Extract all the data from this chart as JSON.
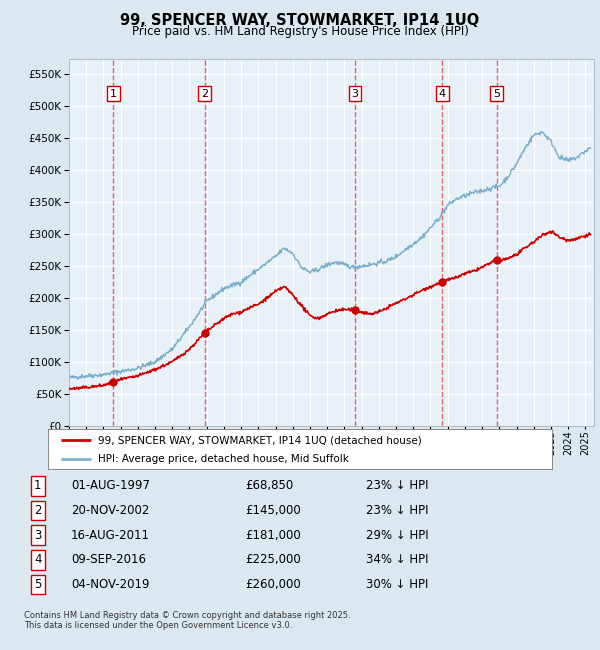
{
  "title": "99, SPENCER WAY, STOWMARKET, IP14 1UQ",
  "subtitle": "Price paid vs. HM Land Registry's House Price Index (HPI)",
  "ylim": [
    0,
    575000
  ],
  "yticks": [
    0,
    50000,
    100000,
    150000,
    200000,
    250000,
    300000,
    350000,
    400000,
    450000,
    500000,
    550000
  ],
  "xlim_start": 1995.0,
  "xlim_end": 2025.5,
  "bg_color": "#dce8f0",
  "plot_bg_color": "#e8f0f8",
  "grid_color": "#ffffff",
  "purchases": [
    {
      "num": 1,
      "date": "01-AUG-1997",
      "year": 1997.58,
      "price": 68850,
      "pct": "23%",
      "dir": "↓"
    },
    {
      "num": 2,
      "date": "20-NOV-2002",
      "year": 2002.88,
      "price": 145000,
      "pct": "23%",
      "dir": "↓"
    },
    {
      "num": 3,
      "date": "16-AUG-2011",
      "year": 2011.62,
      "price": 181000,
      "pct": "29%",
      "dir": "↓"
    },
    {
      "num": 4,
      "date": "09-SEP-2016",
      "year": 2016.69,
      "price": 225000,
      "pct": "34%",
      "dir": "↓"
    },
    {
      "num": 5,
      "date": "04-NOV-2019",
      "year": 2019.84,
      "price": 260000,
      "pct": "30%",
      "dir": "↓"
    }
  ],
  "legend_label_red": "99, SPENCER WAY, STOWMARKET, IP14 1UQ (detached house)",
  "legend_label_blue": "HPI: Average price, detached house, Mid Suffolk",
  "footer": "Contains HM Land Registry data © Crown copyright and database right 2025.\nThis data is licensed under the Open Government Licence v3.0.",
  "red_color": "#cc0000",
  "blue_color": "#7aafcc",
  "dashed_color": "#dd4444",
  "hpi_keypoints": [
    [
      1995.0,
      75000
    ],
    [
      1996.0,
      78000
    ],
    [
      1997.0,
      80000
    ],
    [
      1998.0,
      85000
    ],
    [
      1999.0,
      90000
    ],
    [
      2000.0,
      100000
    ],
    [
      2001.0,
      120000
    ],
    [
      2002.0,
      155000
    ],
    [
      2003.0,
      195000
    ],
    [
      2004.0,
      215000
    ],
    [
      2005.0,
      225000
    ],
    [
      2006.0,
      245000
    ],
    [
      2007.0,
      265000
    ],
    [
      2007.5,
      278000
    ],
    [
      2008.0,
      270000
    ],
    [
      2008.5,
      248000
    ],
    [
      2009.0,
      240000
    ],
    [
      2009.5,
      245000
    ],
    [
      2010.0,
      252000
    ],
    [
      2010.5,
      256000
    ],
    [
      2011.0,
      252000
    ],
    [
      2011.5,
      248000
    ],
    [
      2012.0,
      250000
    ],
    [
      2012.5,
      252000
    ],
    [
      2013.0,
      255000
    ],
    [
      2013.5,
      258000
    ],
    [
      2014.0,
      265000
    ],
    [
      2014.5,
      275000
    ],
    [
      2015.0,
      285000
    ],
    [
      2015.5,
      295000
    ],
    [
      2016.0,
      310000
    ],
    [
      2016.5,
      325000
    ],
    [
      2017.0,
      345000
    ],
    [
      2017.5,
      355000
    ],
    [
      2018.0,
      360000
    ],
    [
      2018.5,
      365000
    ],
    [
      2019.0,
      368000
    ],
    [
      2019.5,
      372000
    ],
    [
      2020.0,
      375000
    ],
    [
      2020.5,
      390000
    ],
    [
      2021.0,
      410000
    ],
    [
      2021.5,
      435000
    ],
    [
      2022.0,
      455000
    ],
    [
      2022.5,
      460000
    ],
    [
      2023.0,
      445000
    ],
    [
      2023.5,
      420000
    ],
    [
      2024.0,
      415000
    ],
    [
      2024.5,
      420000
    ],
    [
      2025.0,
      430000
    ],
    [
      2025.3,
      435000
    ]
  ],
  "prop_keypoints": [
    [
      1995.0,
      58000
    ],
    [
      1995.5,
      58500
    ],
    [
      1996.0,
      60000
    ],
    [
      1997.0,
      63000
    ],
    [
      1997.58,
      68850
    ],
    [
      1998.0,
      72000
    ],
    [
      1999.0,
      78000
    ],
    [
      2000.0,
      88000
    ],
    [
      2001.0,
      100000
    ],
    [
      2002.0,
      120000
    ],
    [
      2002.88,
      145000
    ],
    [
      2003.0,
      148000
    ],
    [
      2003.5,
      158000
    ],
    [
      2004.0,
      168000
    ],
    [
      2004.5,
      175000
    ],
    [
      2005.0,
      178000
    ],
    [
      2005.5,
      185000
    ],
    [
      2006.0,
      190000
    ],
    [
      2006.5,
      200000
    ],
    [
      2007.0,
      210000
    ],
    [
      2007.5,
      218000
    ],
    [
      2008.0,
      205000
    ],
    [
      2008.5,
      188000
    ],
    [
      2009.0,
      172000
    ],
    [
      2009.5,
      168000
    ],
    [
      2010.0,
      175000
    ],
    [
      2010.5,
      180000
    ],
    [
      2011.0,
      182000
    ],
    [
      2011.62,
      181000
    ],
    [
      2012.0,
      178000
    ],
    [
      2012.5,
      175000
    ],
    [
      2013.0,
      178000
    ],
    [
      2013.5,
      185000
    ],
    [
      2014.0,
      192000
    ],
    [
      2014.5,
      198000
    ],
    [
      2015.0,
      205000
    ],
    [
      2015.5,
      212000
    ],
    [
      2016.0,
      218000
    ],
    [
      2016.69,
      225000
    ],
    [
      2017.0,
      228000
    ],
    [
      2017.5,
      232000
    ],
    [
      2018.0,
      238000
    ],
    [
      2018.5,
      242000
    ],
    [
      2019.0,
      248000
    ],
    [
      2019.84,
      260000
    ],
    [
      2020.0,
      258000
    ],
    [
      2020.5,
      262000
    ],
    [
      2021.0,
      268000
    ],
    [
      2021.5,
      278000
    ],
    [
      2022.0,
      288000
    ],
    [
      2022.5,
      298000
    ],
    [
      2023.0,
      305000
    ],
    [
      2023.5,
      295000
    ],
    [
      2024.0,
      290000
    ],
    [
      2024.5,
      293000
    ],
    [
      2025.0,
      298000
    ],
    [
      2025.3,
      300000
    ]
  ]
}
